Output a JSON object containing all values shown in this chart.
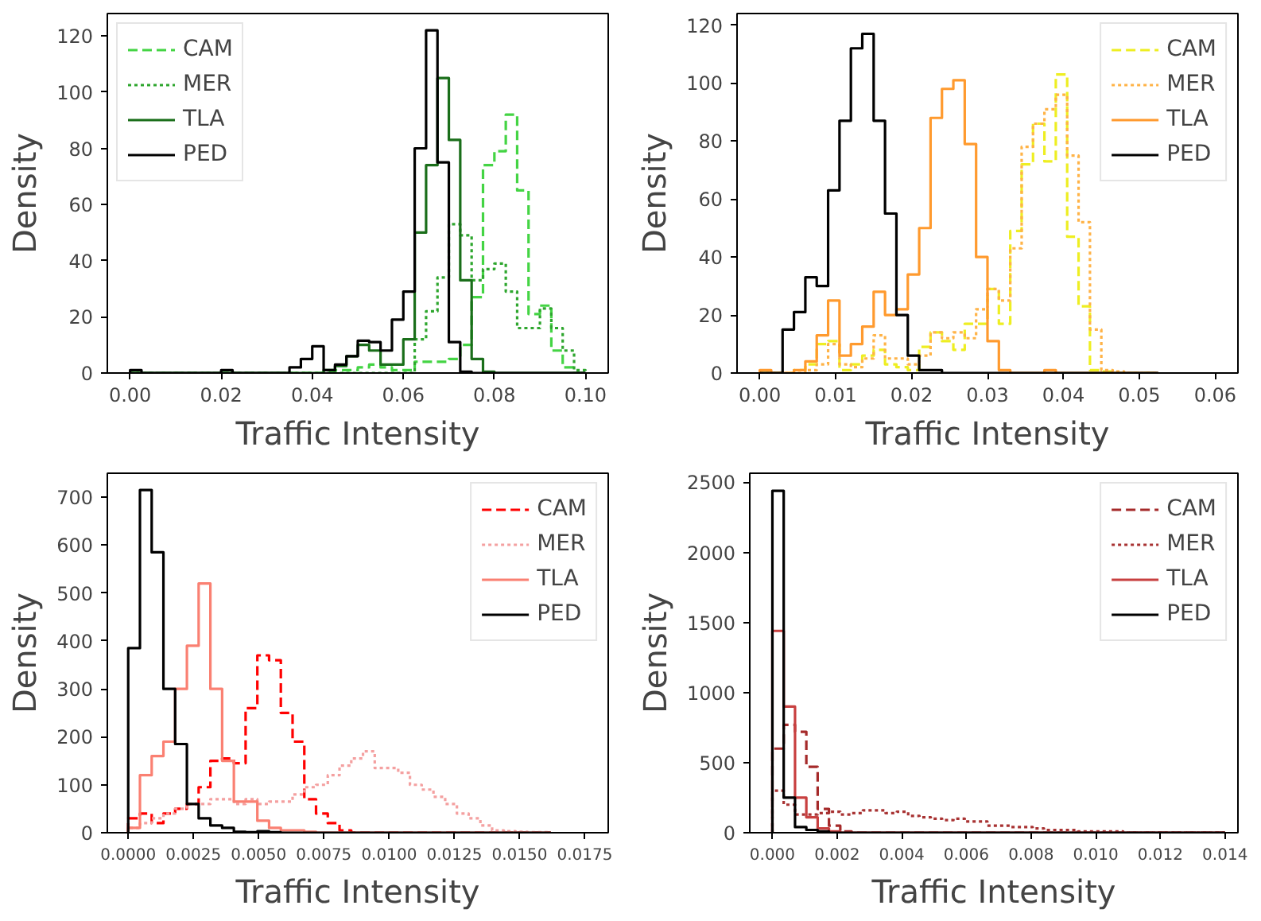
{
  "chart_data": [
    {
      "type": "histogram",
      "xlabel": "Traffic Intensity",
      "ylabel": "Density",
      "legend": "top left",
      "bins": [
        0,
        0.0025,
        0.005,
        0.0075,
        0.01,
        0.0125,
        0.015,
        0.0175,
        0.02,
        0.0225,
        0.025,
        0.0275,
        0.03,
        0.0325,
        0.035,
        0.0375,
        0.04,
        0.0425,
        0.045,
        0.0475,
        0.05,
        0.0525,
        0.055,
        0.0575,
        0.06,
        0.0625,
        0.065,
        0.0675,
        0.07,
        0.0725,
        0.075,
        0.0775,
        0.08,
        0.0825,
        0.085,
        0.0875,
        0.09,
        0.0925,
        0.095,
        0.0975,
        0.1
      ],
      "xlim": [
        -0.005,
        0.105
      ],
      "ylim": [
        0,
        128
      ],
      "xticks": [
        {
          "value": 0,
          "label": "0.00"
        },
        {
          "value": 0.02,
          "label": "0.02"
        },
        {
          "value": 0.04,
          "label": "0.04"
        },
        {
          "value": 0.06,
          "label": "0.06"
        },
        {
          "value": 0.08,
          "label": "0.08"
        },
        {
          "value": 0.1,
          "label": "0.10"
        }
      ],
      "yticks": [
        0,
        20,
        40,
        60,
        80,
        100,
        120
      ],
      "series": [
        {
          "name": "CAM",
          "color": "#44d444",
          "line_style": "dashed",
          "values": [
            0,
            0,
            0,
            0,
            0,
            0,
            0,
            0,
            0,
            0,
            0,
            0,
            0,
            0,
            0,
            0,
            0,
            0.5,
            1,
            1,
            2,
            3,
            2,
            1,
            1,
            4,
            4,
            4,
            5,
            10,
            27,
            74,
            79,
            92,
            65,
            21,
            24,
            8,
            2,
            0
          ]
        },
        {
          "name": "MER",
          "color": "#2ea62e",
          "line_style": "dotted",
          "values": [
            0,
            0,
            0,
            0,
            0,
            0,
            0,
            0,
            0,
            0,
            0,
            0,
            0,
            0,
            0,
            0,
            0,
            0,
            0,
            0,
            0,
            0,
            0,
            0,
            0,
            12,
            22,
            34,
            53,
            49,
            33,
            37,
            39,
            29,
            16,
            16,
            23,
            16,
            8,
            1
          ]
        },
        {
          "name": "TLA",
          "color": "#1a6e1a",
          "line_style": "solid",
          "values": [
            0,
            0,
            0,
            0,
            0,
            0,
            0,
            0,
            0,
            0,
            0,
            0,
            0,
            0,
            0,
            0,
            0,
            1,
            2.5,
            6,
            10,
            8,
            3,
            3,
            12,
            50,
            74,
            105,
            83,
            33,
            5,
            0.5,
            0,
            0,
            0,
            0,
            0,
            0,
            0,
            0
          ]
        },
        {
          "name": "PED",
          "color": "#000000",
          "line_style": "solid",
          "values": [
            1,
            0,
            0,
            0,
            0,
            0,
            0,
            0,
            1,
            0,
            0,
            0,
            0,
            0,
            2,
            5,
            9.5,
            1,
            3,
            6,
            11.5,
            11,
            8,
            19,
            29,
            80,
            122,
            75,
            11,
            0.5,
            0,
            0,
            0,
            0,
            0,
            0,
            0,
            0,
            0,
            0
          ]
        }
      ]
    },
    {
      "type": "histogram",
      "xlabel": "Traffic Intensity",
      "ylabel": "Density",
      "legend": "top right",
      "bins": [
        0,
        0.0015,
        0.003,
        0.0045,
        0.006,
        0.0075,
        0.009,
        0.0105,
        0.012,
        0.0135,
        0.015,
        0.0165,
        0.018,
        0.0195,
        0.021,
        0.0225,
        0.024,
        0.0255,
        0.027,
        0.0285,
        0.03,
        0.0315,
        0.033,
        0.0345,
        0.036,
        0.0375,
        0.039,
        0.0405,
        0.042,
        0.0435,
        0.045,
        0.0465,
        0.048,
        0.0495,
        0.051,
        0.0525
      ],
      "xlim": [
        -0.003,
        0.063
      ],
      "ylim": [
        0,
        124
      ],
      "xticks": [
        {
          "value": 0,
          "label": "0.00"
        },
        {
          "value": 0.01,
          "label": "0.01"
        },
        {
          "value": 0.02,
          "label": "0.02"
        },
        {
          "value": 0.03,
          "label": "0.03"
        },
        {
          "value": 0.04,
          "label": "0.04"
        },
        {
          "value": 0.05,
          "label": "0.05"
        },
        {
          "value": 0.06,
          "label": "0.06"
        }
      ],
      "yticks": [
        0,
        20,
        40,
        60,
        80,
        100,
        120
      ],
      "series": [
        {
          "name": "CAM",
          "color": "#eeee22",
          "line_style": "dashed",
          "values": [
            0,
            0,
            0,
            1,
            3,
            10,
            11,
            1,
            3,
            6,
            8,
            3,
            2,
            1,
            9,
            14,
            11,
            8,
            17,
            17,
            29,
            17,
            49,
            72,
            86,
            73,
            103,
            47,
            23,
            1,
            0.5,
            0,
            0,
            0,
            0
          ]
        },
        {
          "name": "MER",
          "color": "#ffb347",
          "line_style": "dotted",
          "values": [
            0,
            0,
            0,
            0,
            1,
            3,
            10,
            3,
            2,
            5,
            13,
            5,
            5,
            3,
            6,
            14,
            12,
            14,
            12,
            22,
            29,
            25,
            43,
            78,
            86,
            91,
            96,
            75,
            52,
            15,
            1,
            0.5,
            0,
            0,
            0
          ]
        },
        {
          "name": "TLA",
          "color": "#ff9a2e",
          "line_style": "solid",
          "values": [
            1,
            0,
            0,
            1,
            4,
            13,
            25,
            6,
            10,
            16,
            28,
            20,
            22,
            34,
            50,
            88,
            98,
            101,
            79,
            40,
            11,
            1,
            0,
            0,
            0,
            1,
            0,
            0,
            0,
            0,
            0,
            0,
            0,
            0,
            0
          ]
        },
        {
          "name": "PED",
          "color": "#000000",
          "line_style": "solid",
          "values": [
            0,
            0,
            15,
            21,
            33,
            30,
            63,
            87,
            112,
            117,
            87,
            55,
            20,
            6,
            1,
            1,
            0,
            0,
            0,
            0,
            0,
            0,
            0,
            0,
            0,
            0,
            0,
            0,
            0,
            0,
            0,
            0,
            0,
            0,
            0
          ]
        }
      ]
    },
    {
      "type": "histogram",
      "xlabel": "Traffic Intensity",
      "ylabel": "Density",
      "legend": "top right",
      "bins": [
        0,
        0.00045,
        0.0009,
        0.00135,
        0.0018,
        0.00225,
        0.0027,
        0.00315,
        0.0036,
        0.00405,
        0.0045,
        0.00495,
        0.0054,
        0.00585,
        0.0063,
        0.00675,
        0.0072,
        0.00765,
        0.0081,
        0.00855,
        0.009,
        0.00945,
        0.0099,
        0.01035,
        0.0108,
        0.01125,
        0.0117,
        0.01215,
        0.0126,
        0.01305,
        0.0135,
        0.01395,
        0.0144,
        0.01485,
        0.0153,
        0.01575,
        0.0162
      ],
      "xlim": [
        -0.0008,
        0.0184
      ],
      "ylim": [
        0,
        750
      ],
      "xticks": [
        {
          "value": 0,
          "label": "0.0000"
        },
        {
          "value": 0.0025,
          "label": "0.0025"
        },
        {
          "value": 0.005,
          "label": "0.0050"
        },
        {
          "value": 0.0075,
          "label": "0.0075"
        },
        {
          "value": 0.01,
          "label": "0.0100"
        },
        {
          "value": 0.0125,
          "label": "0.0125"
        },
        {
          "value": 0.015,
          "label": "0.0150"
        },
        {
          "value": 0.0175,
          "label": "0.0175"
        }
      ],
      "yticks": [
        0,
        100,
        200,
        300,
        400,
        500,
        600,
        700
      ],
      "series": [
        {
          "name": "CAM",
          "color": "#ff0000",
          "line_style": "dashed",
          "values": [
            30,
            40,
            20,
            40,
            50,
            60,
            95,
            150,
            155,
            145,
            260,
            370,
            360,
            250,
            190,
            70,
            40,
            20,
            5,
            0,
            0,
            0,
            0,
            0,
            0,
            0,
            0,
            0,
            0,
            0,
            0,
            0,
            0,
            0,
            0,
            0
          ]
        },
        {
          "name": "MER",
          "color": "#f4a0a0",
          "line_style": "dotted",
          "values": [
            10,
            20,
            30,
            40,
            50,
            60,
            60,
            70,
            70,
            60,
            70,
            60,
            65,
            65,
            80,
            95,
            100,
            120,
            140,
            155,
            170,
            135,
            135,
            125,
            100,
            90,
            75,
            60,
            40,
            30,
            15,
            5,
            3,
            2,
            1,
            1
          ]
        },
        {
          "name": "TLA",
          "color": "#fa8072",
          "line_style": "solid",
          "values": [
            10,
            120,
            160,
            190,
            300,
            390,
            520,
            300,
            150,
            65,
            65,
            25,
            10,
            5,
            5,
            2,
            0,
            0,
            0,
            0,
            0,
            0,
            0,
            0,
            0,
            0,
            0,
            0,
            0,
            0,
            0,
            0,
            0,
            0,
            0,
            0
          ]
        },
        {
          "name": "PED",
          "color": "#000000",
          "line_style": "solid",
          "values": [
            385,
            715,
            585,
            300,
            185,
            60,
            30,
            15,
            10,
            2,
            1,
            3,
            1,
            0,
            0,
            0,
            0,
            0,
            0,
            0,
            0,
            0,
            0,
            0,
            0,
            0,
            0,
            0,
            0,
            0,
            0,
            0,
            0,
            0,
            0,
            0
          ]
        }
      ]
    },
    {
      "type": "histogram",
      "xlabel": "Traffic Intensity",
      "ylabel": "Density",
      "legend": "top right",
      "bins": [
        0,
        0.00035,
        0.0007,
        0.00105,
        0.0014,
        0.00175,
        0.0021,
        0.00245,
        0.0028,
        0.00315,
        0.0035,
        0.00385,
        0.0042,
        0.00455,
        0.0049,
        0.00525,
        0.0056,
        0.00595,
        0.0063,
        0.00665,
        0.007,
        0.00735,
        0.0077,
        0.00805,
        0.0084,
        0.00875,
        0.0091,
        0.00945,
        0.0098,
        0.01015,
        0.0105,
        0.01085,
        0.0112,
        0.01155,
        0.0119,
        0.01225,
        0.0126,
        0.01295,
        0.0133,
        0.01365,
        0.014
      ],
      "xlim": [
        -0.0007,
        0.0144
      ],
      "ylim": [
        0,
        2565
      ],
      "xticks": [
        {
          "value": 0,
          "label": "0.000"
        },
        {
          "value": 0.002,
          "label": "0.002"
        },
        {
          "value": 0.004,
          "label": "0.004"
        },
        {
          "value": 0.006,
          "label": "0.006"
        },
        {
          "value": 0.008,
          "label": "0.008"
        },
        {
          "value": 0.01,
          "label": "0.010"
        },
        {
          "value": 0.012,
          "label": "0.012"
        },
        {
          "value": 0.014,
          "label": "0.014"
        }
      ],
      "yticks": [
        0,
        500,
        1000,
        1500,
        2000,
        2500
      ],
      "series": [
        {
          "name": "CAM",
          "color": "#a52a2a",
          "line_style": "dashed",
          "values": [
            600,
            770,
            720,
            470,
            170,
            50,
            10,
            0,
            0,
            0,
            0,
            0,
            0,
            0,
            0,
            0,
            0,
            0,
            0,
            0,
            0,
            0,
            0,
            0,
            0,
            0,
            0,
            0,
            0,
            0,
            0,
            0,
            0,
            0,
            0,
            0,
            0,
            0,
            0,
            0
          ]
        },
        {
          "name": "MER",
          "color": "#a83232",
          "line_style": "dotted",
          "values": [
            300,
            200,
            130,
            130,
            140,
            150,
            130,
            140,
            160,
            160,
            140,
            150,
            120,
            110,
            100,
            90,
            100,
            80,
            80,
            50,
            50,
            40,
            40,
            30,
            20,
            20,
            20,
            10,
            10,
            10,
            10,
            0,
            0,
            0,
            0,
            0,
            0,
            0,
            0,
            0
          ]
        },
        {
          "name": "TLA",
          "color": "#c84040",
          "line_style": "solid",
          "values": [
            1440,
            900,
            250,
            110,
            30,
            10,
            0,
            0,
            0,
            0,
            0,
            0,
            0,
            0,
            0,
            0,
            0,
            0,
            0,
            0,
            0,
            0,
            0,
            0,
            0,
            0,
            0,
            0,
            0,
            0,
            0,
            0,
            0,
            0,
            0,
            0,
            0,
            0,
            0,
            0
          ]
        },
        {
          "name": "PED",
          "color": "#000000",
          "line_style": "solid",
          "values": [
            2440,
            250,
            40,
            20,
            10,
            0,
            0,
            0,
            0,
            0,
            0,
            0,
            0,
            0,
            0,
            0,
            0,
            0,
            0,
            0,
            0,
            0,
            0,
            0,
            0,
            0,
            0,
            0,
            0,
            0,
            0,
            0,
            0,
            0,
            0,
            0,
            0,
            0,
            0,
            0
          ]
        }
      ]
    }
  ]
}
